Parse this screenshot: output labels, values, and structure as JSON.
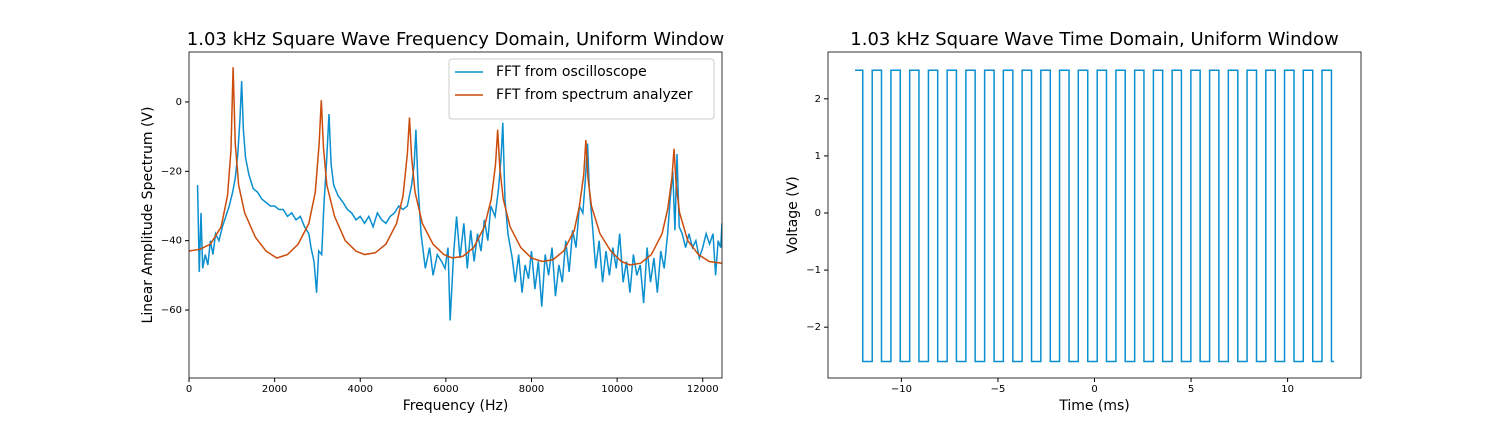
{
  "chart_data": [
    {
      "type": "line",
      "title": "1.03 kHz Square Wave Frequency Domain, Uniform Window",
      "xlabel": "Frequency (Hz)",
      "ylabel": "Linear Amplitude Spectrum (V)",
      "xlim": [
        0,
        12450
      ],
      "ylim": [
        -79.6,
        14.4
      ],
      "xticks": [
        0,
        2000,
        4000,
        6000,
        8000,
        10000,
        12000
      ],
      "yticks": [
        {
          "value": -60,
          "label": "−60"
        },
        {
          "value": -40,
          "label": "−40"
        },
        {
          "value": -20,
          "label": "−20"
        },
        0
      ],
      "legend": "upper right",
      "series": [
        {
          "name": "FFT from oscilloscope",
          "color": "#0a8fcf",
          "x": [
            200,
            240,
            280,
            320,
            380,
            440,
            500,
            560,
            620,
            700,
            780,
            860,
            940,
            1020,
            1080,
            1140,
            1190,
            1230,
            1270,
            1320,
            1400,
            1500,
            1600,
            1700,
            1800,
            1900,
            2000,
            2100,
            2200,
            2300,
            2400,
            2500,
            2600,
            2700,
            2800,
            2850,
            2920,
            2980,
            3030,
            3100,
            3150,
            3210,
            3270,
            3320,
            3380,
            3480,
            3600,
            3700,
            3800,
            3900,
            4000,
            4100,
            4200,
            4300,
            4400,
            4500,
            4600,
            4700,
            4800,
            4900,
            5000,
            5100,
            5200,
            5260,
            5300,
            5350,
            5420,
            5520,
            5620,
            5700,
            5800,
            5900,
            5980,
            6050,
            6100,
            6180,
            6250,
            6330,
            6420,
            6500,
            6580,
            6660,
            6740,
            6820,
            6900,
            6980,
            7050,
            7150,
            7230,
            7290,
            7330,
            7380,
            7450,
            7550,
            7620,
            7700,
            7780,
            7850,
            7930,
            8000,
            8080,
            8160,
            8240,
            8320,
            8400,
            8480,
            8560,
            8640,
            8720,
            8800,
            8880,
            8960,
            9040,
            9120,
            9200,
            9260,
            9310,
            9350,
            9420,
            9500,
            9580,
            9660,
            9740,
            9820,
            9900,
            9980,
            10060,
            10140,
            10220,
            10300,
            10380,
            10460,
            10540,
            10620,
            10700,
            10780,
            10860,
            10940,
            11020,
            11100,
            11180,
            11240,
            11300,
            11350,
            11400,
            11450,
            11520,
            11600,
            11680,
            11760,
            11840,
            11920,
            12000,
            12080,
            12160,
            12240,
            12300,
            12360,
            12420,
            12450
          ],
          "values": [
            -24,
            -49,
            -32,
            -48,
            -44,
            -47,
            -40,
            -44,
            -38,
            -40,
            -36,
            -33,
            -30,
            -26,
            -22,
            -15,
            -5,
            6,
            -8,
            -16,
            -21,
            -25,
            -26,
            -28,
            -29,
            -30,
            -30,
            -31,
            -31,
            -33,
            -32,
            -34,
            -33,
            -36,
            -38,
            -42,
            -46,
            -55,
            -43,
            -44,
            -30,
            -18,
            -3.5,
            -18,
            -24,
            -27,
            -29,
            -31,
            -32,
            -34,
            -33,
            -35,
            -33,
            -36,
            -32,
            -34,
            -35,
            -33,
            -32,
            -30,
            -31,
            -30,
            -24,
            -18,
            -8,
            -24,
            -38,
            -48,
            -42,
            -50,
            -44,
            -46,
            -48,
            -42,
            -63,
            -44,
            -33,
            -45,
            -35,
            -48,
            -37,
            -46,
            -38,
            -43,
            -34,
            -40,
            -30,
            -33,
            -25,
            -16,
            -6,
            -28,
            -38,
            -45,
            -52,
            -44,
            -55,
            -47,
            -51,
            -43,
            -54,
            -46,
            -59,
            -44,
            -50,
            -42,
            -56,
            -47,
            -52,
            -40,
            -49,
            -37,
            -42,
            -30,
            -32,
            -22,
            -12,
            -25,
            -35,
            -48,
            -40,
            -52,
            -43,
            -50,
            -42,
            -48,
            -38,
            -52,
            -46,
            -55,
            -44,
            -50,
            -47,
            -58,
            -42,
            -52,
            -45,
            -55,
            -43,
            -48,
            -38,
            -28,
            -20,
            -37,
            -15,
            -36,
            -38,
            -42,
            -38,
            -42,
            -40,
            -45,
            -42,
            -38,
            -41,
            -38,
            -50,
            -40,
            -42,
            -35
          ]
        },
        {
          "name": "FFT from spectrum analyzer",
          "color": "#cc4c0c",
          "x": [
            0,
            250,
            500,
            750,
            900,
            980,
            1030,
            1080,
            1160,
            1300,
            1550,
            1800,
            2050,
            2300,
            2550,
            2800,
            2950,
            3040,
            3090,
            3140,
            3220,
            3400,
            3650,
            3900,
            4100,
            4350,
            4600,
            4850,
            5000,
            5100,
            5150,
            5200,
            5280,
            5450,
            5700,
            5950,
            6150,
            6400,
            6650,
            6900,
            7060,
            7160,
            7210,
            7260,
            7340,
            7500,
            7750,
            8000,
            8250,
            8500,
            8750,
            9000,
            9120,
            9220,
            9270,
            9320,
            9400,
            9600,
            9850,
            10100,
            10300,
            10550,
            10800,
            11050,
            11180,
            11280,
            11330,
            11380,
            11460,
            11650,
            11900,
            12150,
            12450
          ],
          "values": [
            -43,
            -42.5,
            -41,
            -36,
            -27,
            -14,
            10,
            -12,
            -24,
            -32,
            -39,
            -43,
            -45,
            -44,
            -41,
            -35,
            -26,
            -12,
            0.5,
            -13,
            -24,
            -33,
            -40,
            -43,
            -44,
            -43.5,
            -41,
            -35,
            -27,
            -15,
            -4.5,
            -16,
            -26,
            -35,
            -41,
            -44,
            -45,
            -44.5,
            -42,
            -36,
            -28,
            -18,
            -8,
            -19,
            -28,
            -36,
            -42,
            -45,
            -46,
            -45.5,
            -43,
            -37,
            -30,
            -21,
            -11,
            -22,
            -30,
            -38,
            -43,
            -46,
            -47,
            -46.5,
            -44,
            -38,
            -31,
            -22,
            -13.5,
            -24,
            -32,
            -40,
            -44,
            -46,
            -46.5
          ]
        }
      ]
    },
    {
      "type": "line",
      "title": "1.03 kHz Square Wave Time Domain, Uniform Window",
      "xlabel": "Time (ms)",
      "ylabel": "Voltage (V)",
      "xlim": [
        -13.8,
        13.8
      ],
      "ylim": [
        -2.89,
        2.82
      ],
      "xticks": [
        {
          "value": -10,
          "label": "−10"
        },
        {
          "value": -5,
          "label": "−5"
        },
        0,
        5,
        10
      ],
      "yticks": [
        {
          "value": -2,
          "label": "−2"
        },
        {
          "value": -1,
          "label": "−1"
        },
        0,
        1,
        2
      ],
      "series": [
        {
          "color": "#0a8fcf",
          "x": [
            -12.4,
            -12.0,
            -12.0,
            -11.51,
            -11.51,
            -11.03,
            -11.03,
            -10.54,
            -10.54,
            -10.06,
            -10.06,
            -9.57,
            -9.57,
            -9.09,
            -9.09,
            -8.6,
            -8.6,
            -8.12,
            -8.12,
            -7.63,
            -7.63,
            -7.15,
            -7.15,
            -6.66,
            -6.66,
            -6.18,
            -6.18,
            -5.69,
            -5.69,
            -5.2,
            -5.2,
            -4.72,
            -4.72,
            -4.23,
            -4.23,
            -3.75,
            -3.75,
            -3.26,
            -3.26,
            -2.78,
            -2.78,
            -2.29,
            -2.29,
            -1.81,
            -1.81,
            -1.32,
            -1.32,
            -0.84,
            -0.84,
            -0.35,
            -0.35,
            0.14,
            0.14,
            0.62,
            0.62,
            1.11,
            1.11,
            1.59,
            1.59,
            2.08,
            2.08,
            2.56,
            2.56,
            3.05,
            3.05,
            3.53,
            3.53,
            4.02,
            4.02,
            4.5,
            4.5,
            4.99,
            4.99,
            5.47,
            5.47,
            5.96,
            5.96,
            6.44,
            6.44,
            6.93,
            6.93,
            7.42,
            7.42,
            7.9,
            7.9,
            8.39,
            8.39,
            8.87,
            8.87,
            9.36,
            9.36,
            9.84,
            9.84,
            10.33,
            10.33,
            10.81,
            10.81,
            11.3,
            11.3,
            11.78,
            11.78,
            12.27,
            12.27,
            12.4
          ],
          "values": [
            2.5,
            2.5,
            -2.6,
            -2.6,
            2.5,
            2.5,
            -2.6,
            -2.6,
            2.5,
            2.5,
            -2.6,
            -2.6,
            2.5,
            2.5,
            -2.6,
            -2.6,
            2.5,
            2.5,
            -2.6,
            -2.6,
            2.5,
            2.5,
            -2.6,
            -2.6,
            2.5,
            2.5,
            -2.6,
            -2.6,
            2.5,
            2.5,
            -2.6,
            -2.6,
            2.5,
            2.5,
            -2.6,
            -2.6,
            2.5,
            2.5,
            -2.6,
            -2.6,
            2.5,
            2.5,
            -2.6,
            -2.6,
            2.5,
            2.5,
            -2.6,
            -2.6,
            2.5,
            2.5,
            -2.6,
            -2.6,
            2.5,
            2.5,
            -2.6,
            -2.6,
            2.5,
            2.5,
            -2.6,
            -2.6,
            2.5,
            2.5,
            -2.6,
            -2.6,
            2.5,
            2.5,
            -2.6,
            -2.6,
            2.5,
            2.5,
            -2.6,
            -2.6,
            2.5,
            2.5,
            -2.6,
            -2.6,
            2.5,
            2.5,
            -2.6,
            -2.6,
            2.5,
            2.5,
            -2.6,
            -2.6,
            2.5,
            2.5,
            -2.6,
            -2.6,
            2.5,
            2.5,
            -2.6,
            -2.6,
            2.5,
            2.5,
            -2.6,
            -2.6,
            2.5,
            2.5,
            -2.6,
            -2.6,
            2.5,
            2.5,
            -2.6,
            -2.6
          ]
        }
      ]
    }
  ]
}
